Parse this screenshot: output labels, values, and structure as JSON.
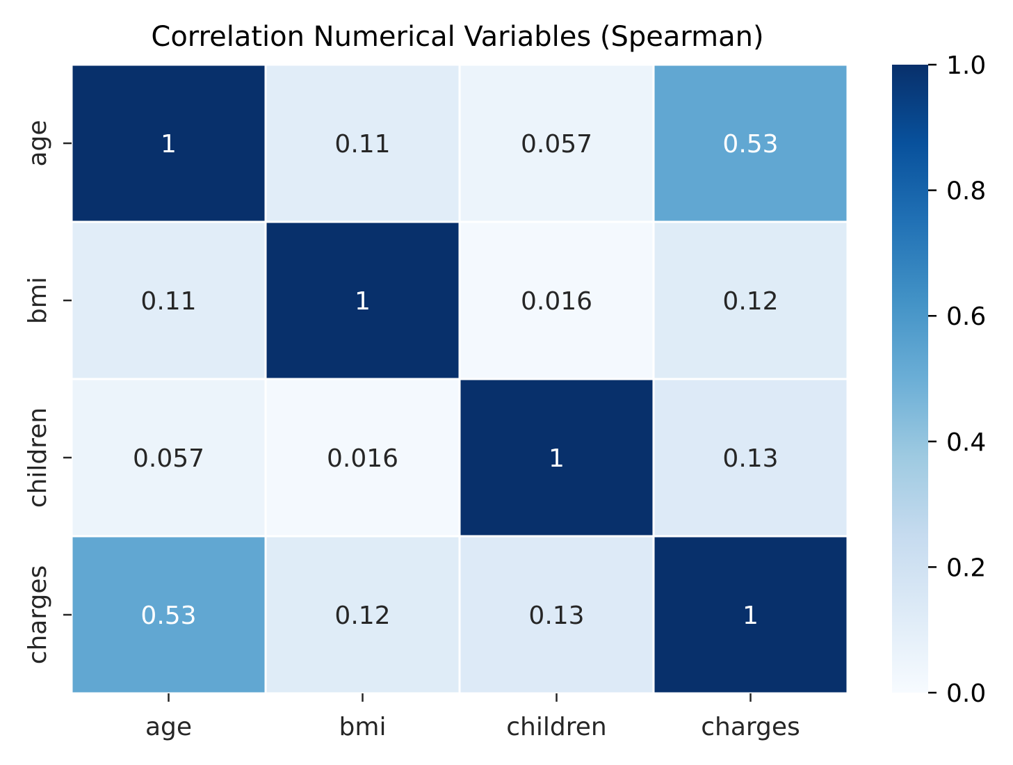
{
  "chart_data": {
    "type": "heatmap",
    "title": "Correlation Numerical Variables (Spearman)",
    "xlabel": "",
    "ylabel": "",
    "x_categories": [
      "age",
      "bmi",
      "children",
      "charges"
    ],
    "y_categories": [
      "age",
      "bmi",
      "children",
      "charges"
    ],
    "values": [
      [
        1,
        0.11,
        0.057,
        0.53
      ],
      [
        0.11,
        1,
        0.016,
        0.12
      ],
      [
        0.057,
        0.016,
        1,
        0.13
      ],
      [
        0.53,
        0.12,
        0.13,
        1
      ]
    ],
    "cell_labels": [
      [
        "1",
        "0.11",
        "0.057",
        "0.53"
      ],
      [
        "0.11",
        "1",
        "0.016",
        "0.12"
      ],
      [
        "0.057",
        "0.016",
        "1",
        "0.13"
      ],
      [
        "0.53",
        "0.12",
        "0.13",
        "1"
      ]
    ],
    "colorbar": {
      "colormap": "Blues",
      "range": [
        0,
        1
      ],
      "ticks": [
        0.0,
        0.2,
        0.4,
        0.6,
        0.8,
        1.0
      ],
      "tick_labels": [
        "0.0",
        "0.2",
        "0.4",
        "0.6",
        "0.8",
        "1.0"
      ],
      "placement": "right"
    },
    "colors": {
      "low": "#f7fbff",
      "high": "#08306b",
      "cell_border": "#ffffff",
      "label_dark": "#262626",
      "label_light": "#ffffff"
    }
  }
}
